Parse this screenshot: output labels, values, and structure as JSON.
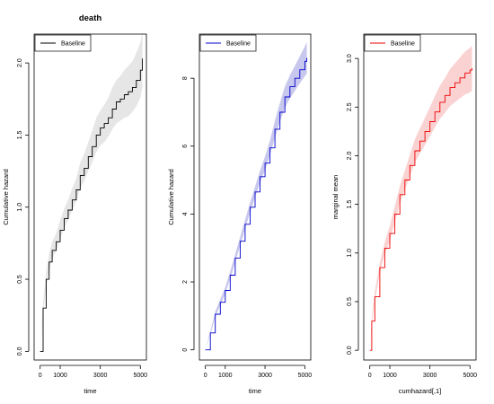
{
  "chart_data": [
    {
      "type": "line",
      "title": "death",
      "xlabel": "time",
      "ylabel": "Cumulative hazard",
      "xlim": [
        -300,
        5300
      ],
      "ylim": [
        -0.06,
        2.2
      ],
      "xticks": [
        0,
        1000,
        3000,
        5000
      ],
      "yticks": [
        0.0,
        0.5,
        1.0,
        1.5,
        2.0
      ],
      "xtick_labels": [
        "0",
        "1000",
        "3000",
        "5000"
      ],
      "ytick_labels": [
        "0.0",
        "0.5",
        "1.0",
        "1.5",
        "2.0"
      ],
      "legend": {
        "position": "top-left",
        "entries": [
          "Baseline"
        ]
      },
      "line_color": "#000000",
      "band_color": "#e6e6e6",
      "grid": false,
      "series": [
        {
          "name": "Baseline",
          "x": [
            0,
            150,
            300,
            450,
            600,
            800,
            1000,
            1200,
            1400,
            1600,
            1800,
            2000,
            2200,
            2400,
            2600,
            2800,
            3000,
            3200,
            3400,
            3600,
            3800,
            4000,
            4200,
            4400,
            4600,
            4800,
            5000,
            5100
          ],
          "y": [
            0.0,
            0.3,
            0.5,
            0.62,
            0.7,
            0.76,
            0.84,
            0.92,
            0.98,
            1.05,
            1.12,
            1.22,
            1.27,
            1.35,
            1.42,
            1.5,
            1.55,
            1.58,
            1.62,
            1.68,
            1.73,
            1.75,
            1.78,
            1.8,
            1.83,
            1.88,
            1.95,
            2.03
          ],
          "lower": [
            0.0,
            0.26,
            0.45,
            0.56,
            0.64,
            0.7,
            0.78,
            0.86,
            0.91,
            0.98,
            1.04,
            1.13,
            1.18,
            1.25,
            1.31,
            1.38,
            1.43,
            1.45,
            1.49,
            1.54,
            1.58,
            1.6,
            1.62,
            1.63,
            1.66,
            1.7,
            1.76,
            1.83
          ],
          "upper": [
            0.0,
            0.34,
            0.55,
            0.68,
            0.76,
            0.82,
            0.91,
            0.99,
            1.05,
            1.13,
            1.2,
            1.31,
            1.37,
            1.45,
            1.53,
            1.62,
            1.67,
            1.71,
            1.76,
            1.83,
            1.88,
            1.91,
            1.95,
            1.98,
            2.01,
            2.07,
            2.14,
            2.22
          ]
        }
      ]
    },
    {
      "type": "line",
      "title": "",
      "xlabel": "time",
      "ylabel": "Cumulative hazard",
      "xlim": [
        -300,
        5300
      ],
      "ylim": [
        -0.3,
        9.3
      ],
      "xticks": [
        0,
        1000,
        3000,
        5000
      ],
      "yticks": [
        0,
        2,
        4,
        6,
        8
      ],
      "xtick_labels": [
        "0",
        "1000",
        "3000",
        "5000"
      ],
      "ytick_labels": [
        "0",
        "2",
        "4",
        "6",
        "8"
      ],
      "legend": {
        "position": "top-left",
        "entries": [
          "Baseline"
        ]
      },
      "line_color": "#0000cc",
      "band_color": "#c8c8ee",
      "grid": false,
      "series": [
        {
          "name": "Baseline",
          "x": [
            0,
            250,
            500,
            750,
            1000,
            1250,
            1500,
            1750,
            2000,
            2250,
            2500,
            2750,
            3000,
            3250,
            3500,
            3750,
            4000,
            4250,
            4500,
            4750,
            5000,
            5100
          ],
          "y": [
            0.0,
            0.5,
            1.05,
            1.4,
            1.75,
            2.2,
            2.7,
            3.2,
            3.7,
            4.2,
            4.65,
            5.1,
            5.5,
            5.95,
            6.5,
            7.0,
            7.45,
            7.75,
            8.0,
            8.25,
            8.5,
            8.6
          ],
          "lower": [
            0.0,
            0.45,
            0.97,
            1.31,
            1.65,
            2.09,
            2.58,
            3.07,
            3.56,
            4.05,
            4.49,
            4.92,
            5.3,
            5.73,
            6.25,
            6.72,
            7.14,
            7.41,
            7.63,
            7.85,
            8.06,
            8.13
          ],
          "upper": [
            0.0,
            0.55,
            1.13,
            1.49,
            1.85,
            2.31,
            2.82,
            3.33,
            3.84,
            4.35,
            4.81,
            5.28,
            5.7,
            6.17,
            6.75,
            7.28,
            7.76,
            8.09,
            8.37,
            8.65,
            8.94,
            9.07
          ]
        }
      ]
    },
    {
      "type": "line",
      "title": "",
      "xlabel": "cumhazard[,1]",
      "ylabel": "marginal mean",
      "xlim": [
        -300,
        5300
      ],
      "ylim": [
        -0.1,
        3.25
      ],
      "xticks": [
        0,
        1000,
        3000,
        5000
      ],
      "yticks": [
        0.0,
        0.5,
        1.0,
        1.5,
        2.0,
        2.5,
        3.0
      ],
      "xtick_labels": [
        "0",
        "1000",
        "3000",
        "5000"
      ],
      "ytick_labels": [
        "0.0",
        "0.5",
        "1.0",
        "1.5",
        "2.0",
        "2.5",
        "3.0"
      ],
      "legend": {
        "position": "top-left",
        "entries": [
          "Baseline"
        ]
      },
      "line_color": "#ee0000",
      "band_color": "#fad2d2",
      "grid": false,
      "series": [
        {
          "name": "Baseline",
          "x": [
            0,
            100,
            250,
            500,
            750,
            1000,
            1250,
            1500,
            1750,
            2000,
            2250,
            2500,
            2750,
            3000,
            3250,
            3500,
            3750,
            4000,
            4250,
            4500,
            4750,
            5000,
            5100
          ],
          "y": [
            0.0,
            0.3,
            0.55,
            0.85,
            1.05,
            1.2,
            1.4,
            1.6,
            1.75,
            1.9,
            2.05,
            2.15,
            2.25,
            2.35,
            2.45,
            2.55,
            2.62,
            2.7,
            2.75,
            2.8,
            2.85,
            2.88,
            2.9
          ],
          "lower": [
            0.0,
            0.27,
            0.5,
            0.8,
            0.99,
            1.12,
            1.32,
            1.51,
            1.65,
            1.79,
            1.93,
            2.02,
            2.11,
            2.2,
            2.29,
            2.38,
            2.44,
            2.51,
            2.55,
            2.59,
            2.63,
            2.65,
            2.67
          ],
          "upper": [
            0.0,
            0.33,
            0.6,
            0.9,
            1.11,
            1.28,
            1.48,
            1.69,
            1.85,
            2.01,
            2.17,
            2.28,
            2.39,
            2.5,
            2.61,
            2.72,
            2.8,
            2.89,
            2.95,
            3.01,
            3.07,
            3.11,
            3.13
          ]
        }
      ]
    }
  ]
}
